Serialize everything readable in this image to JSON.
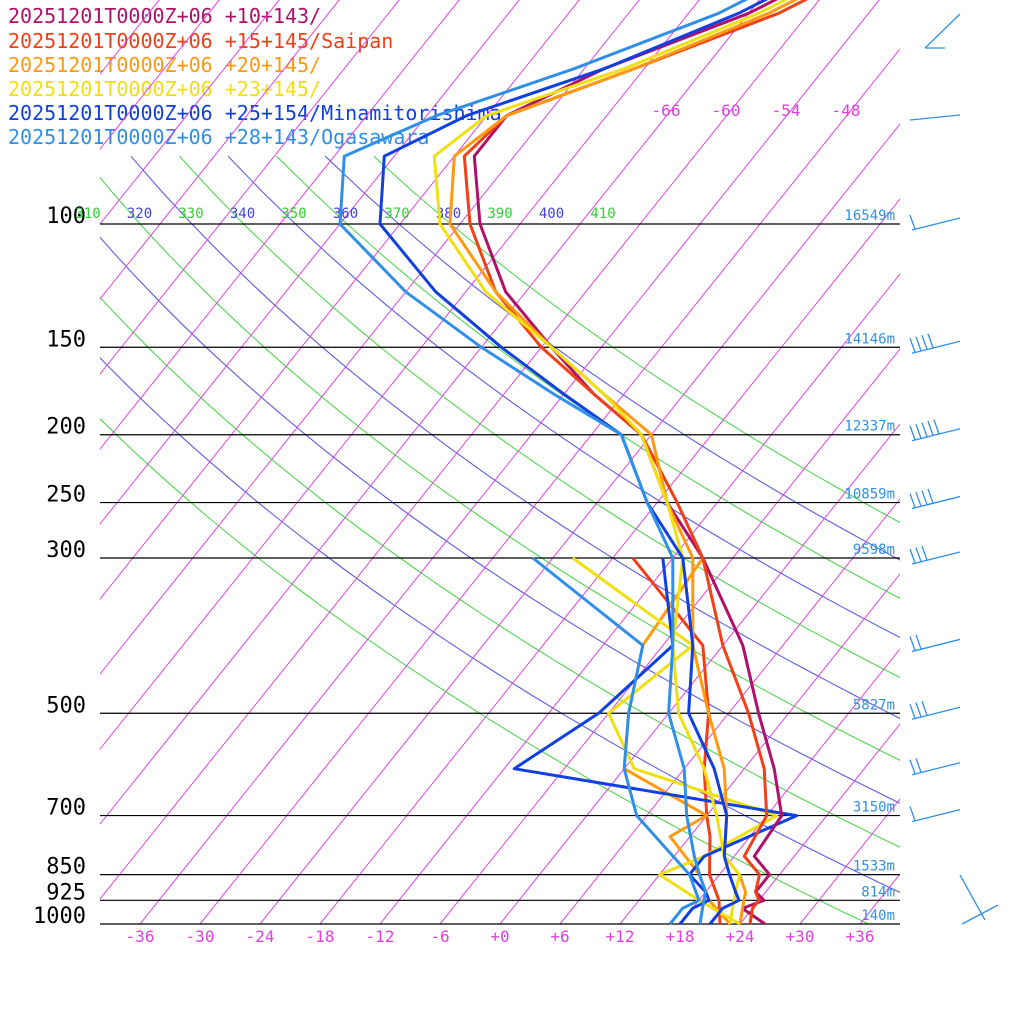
{
  "chart_data": {
    "type": "line",
    "title": "",
    "xlabel": "",
    "ylabel": "",
    "xlim": [
      -40,
      40
    ],
    "pressure_levels": [
      {
        "p": 100,
        "label": "100",
        "height": "16549m"
      },
      {
        "p": 150,
        "label": "150",
        "height": "14146m"
      },
      {
        "p": 200,
        "label": "200",
        "height": "12337m"
      },
      {
        "p": 250,
        "label": "250",
        "height": "10859m"
      },
      {
        "p": 300,
        "label": "300",
        "height": "9598m"
      },
      {
        "p": 500,
        "label": "500",
        "height": "5827m"
      },
      {
        "p": 700,
        "label": "700",
        "height": "3150m"
      },
      {
        "p": 850,
        "label": "850",
        "height": "1533m"
      },
      {
        "p": 925,
        "label": "925",
        "height": "814m"
      },
      {
        "p": 1000,
        "label": "1000",
        "height": "140m"
      }
    ],
    "x_ticks": [
      "-36",
      "-30",
      "-24",
      "-18",
      "-12",
      "-6",
      "+0",
      "+6",
      "+12",
      "+18",
      "+24",
      "+30",
      "+36"
    ],
    "x_tick_values": [
      -36,
      -30,
      -24,
      -18,
      -12,
      -6,
      0,
      6,
      12,
      18,
      24,
      30,
      36
    ],
    "top_temp_labels": [
      "-66",
      "-60",
      "-54",
      "-48"
    ],
    "theta_labels": [
      {
        "text": "310",
        "color": "#30d030"
      },
      {
        "text": "320",
        "color": "#4040e0"
      },
      {
        "text": "330",
        "color": "#30d030"
      },
      {
        "text": "340",
        "color": "#4040e0"
      },
      {
        "text": "350",
        "color": "#30d030"
      },
      {
        "text": "360",
        "color": "#4040e0"
      },
      {
        "text": "370",
        "color": "#30d030"
      },
      {
        "text": "380",
        "color": "#4040e0"
      },
      {
        "text": "390",
        "color": "#30d030"
      },
      {
        "text": "400",
        "color": "#4040e0"
      },
      {
        "text": "410",
        "color": "#30d030"
      }
    ],
    "series": [
      {
        "name": "20251201T0000Z+06 +10+143/",
        "color": "#b0106a",
        "temp": [
          [
            1000,
            26.5
          ],
          [
            950,
            23
          ],
          [
            925,
            24.5
          ],
          [
            900,
            23
          ],
          [
            850,
            23
          ],
          [
            800,
            20
          ],
          [
            700,
            19.5
          ],
          [
            600,
            15
          ],
          [
            500,
            9
          ],
          [
            400,
            2
          ],
          [
            300,
            -9
          ],
          [
            250,
            -17
          ],
          [
            200,
            -25
          ],
          [
            175,
            -33
          ],
          [
            150,
            -41
          ],
          [
            125,
            -50
          ],
          [
            100,
            -58
          ],
          [
            80,
            -64
          ],
          [
            70,
            -64
          ],
          [
            60,
            -58
          ],
          [
            50,
            -48
          ],
          [
            40,
            -40
          ]
        ],
        "dew": null
      },
      {
        "name": "20251201T0000Z+06 +15+145/Saipan",
        "color": "#f04018",
        "temp": [
          [
            1000,
            25
          ],
          [
            950,
            24
          ],
          [
            925,
            24
          ],
          [
            900,
            23
          ],
          [
            850,
            22
          ],
          [
            800,
            19
          ],
          [
            700,
            18
          ],
          [
            600,
            14
          ],
          [
            500,
            8
          ],
          [
            400,
            0
          ],
          [
            300,
            -9
          ],
          [
            250,
            -16
          ],
          [
            200,
            -25
          ],
          [
            175,
            -33
          ],
          [
            150,
            -42
          ],
          [
            125,
            -51
          ],
          [
            100,
            -59
          ],
          [
            80,
            -65
          ],
          [
            70,
            -64
          ],
          [
            60,
            -55
          ],
          [
            50,
            -45
          ],
          [
            40,
            -37
          ]
        ],
        "dew": [
          [
            1000,
            22
          ],
          [
            925,
            20
          ],
          [
            850,
            17
          ],
          [
            750,
            14
          ],
          [
            700,
            12
          ],
          [
            600,
            8
          ],
          [
            500,
            4
          ],
          [
            400,
            -2
          ],
          [
            300,
            -16
          ]
        ]
      },
      {
        "name": "20251201T0000Z+06 +20+145/",
        "color": "#ff9a10",
        "temp": [
          [
            1000,
            24
          ],
          [
            950,
            23
          ],
          [
            925,
            22.5
          ],
          [
            900,
            22
          ],
          [
            850,
            20
          ],
          [
            800,
            17
          ],
          [
            700,
            14
          ],
          [
            600,
            10
          ],
          [
            500,
            4
          ],
          [
            400,
            -3
          ],
          [
            300,
            -10
          ],
          [
            250,
            -17
          ],
          [
            200,
            -24
          ],
          [
            175,
            -32
          ],
          [
            150,
            -41
          ],
          [
            125,
            -51
          ],
          [
            100,
            -61
          ],
          [
            80,
            -66
          ],
          [
            70,
            -64
          ],
          [
            60,
            -55
          ],
          [
            50,
            -46
          ],
          [
            40,
            -38
          ]
        ],
        "dew": [
          [
            1000,
            23
          ],
          [
            925,
            19
          ],
          [
            850,
            16
          ],
          [
            750,
            10
          ],
          [
            700,
            12
          ],
          [
            600,
            0
          ],
          [
            500,
            -4
          ],
          [
            400,
            -8
          ],
          [
            300,
            -9
          ]
        ]
      },
      {
        "name": "20251201T0000Z+06 +23+145/",
        "color": "#f0e010",
        "temp": [
          [
            1000,
            23
          ],
          [
            950,
            22
          ],
          [
            925,
            21.5
          ],
          [
            900,
            21
          ],
          [
            850,
            20
          ],
          [
            800,
            17
          ],
          [
            700,
            13
          ],
          [
            600,
            8
          ],
          [
            500,
            1
          ],
          [
            400,
            -5
          ],
          [
            300,
            -11
          ],
          [
            250,
            -17
          ],
          [
            200,
            -25
          ],
          [
            175,
            -32
          ],
          [
            150,
            -41
          ],
          [
            125,
            -52
          ],
          [
            100,
            -62
          ],
          [
            80,
            -68
          ],
          [
            70,
            -66
          ],
          [
            60,
            -56
          ],
          [
            50,
            -47
          ],
          [
            40,
            -39
          ]
        ],
        "dew": [
          [
            1000,
            24
          ],
          [
            925,
            18
          ],
          [
            850,
            12
          ],
          [
            800,
            15
          ],
          [
            700,
            19
          ],
          [
            600,
            1
          ],
          [
            500,
            -6
          ],
          [
            400,
            -3
          ],
          [
            300,
            -22
          ]
        ]
      },
      {
        "name": "20251201T0000Z+06 +25+154/Minamitorishima",
        "color": "#1040e0",
        "temp": [
          [
            1000,
            21
          ],
          [
            950,
            21
          ],
          [
            925,
            22
          ],
          [
            900,
            21
          ],
          [
            850,
            19
          ],
          [
            800,
            17
          ],
          [
            700,
            14
          ],
          [
            600,
            9
          ],
          [
            500,
            2
          ],
          [
            400,
            -3
          ],
          [
            300,
            -11
          ],
          [
            250,
            -19
          ],
          [
            200,
            -27
          ],
          [
            175,
            -36
          ],
          [
            150,
            -46
          ],
          [
            125,
            -57
          ],
          [
            100,
            -68
          ],
          [
            80,
            -73
          ],
          [
            70,
            -68
          ],
          [
            60,
            -58
          ],
          [
            50,
            -49
          ],
          [
            40,
            -41
          ]
        ],
        "dew": [
          [
            1000,
            18
          ],
          [
            950,
            18
          ],
          [
            925,
            19
          ],
          [
            900,
            18
          ],
          [
            850,
            15
          ],
          [
            800,
            15
          ],
          [
            700,
            21
          ],
          [
            600,
            -11
          ],
          [
            500,
            -7
          ],
          [
            400,
            -5
          ],
          [
            300,
            -13
          ]
        ]
      },
      {
        "name": "20251201T0000Z+06 +28+143/Ogasawara",
        "color": "#3090e8",
        "temp": [
          [
            1000,
            20
          ],
          [
            950,
            19
          ],
          [
            925,
            18.5
          ],
          [
            900,
            18
          ],
          [
            850,
            16
          ],
          [
            800,
            14
          ],
          [
            700,
            10
          ],
          [
            600,
            6
          ],
          [
            500,
            0
          ],
          [
            400,
            -5
          ],
          [
            300,
            -12
          ],
          [
            250,
            -19
          ],
          [
            200,
            -27
          ],
          [
            175,
            -37
          ],
          [
            150,
            -48
          ],
          [
            125,
            -60
          ],
          [
            100,
            -72
          ],
          [
            80,
            -77
          ],
          [
            70,
            -71
          ],
          [
            60,
            -61
          ],
          [
            50,
            -51
          ],
          [
            40,
            -43
          ]
        ],
        "dew": [
          [
            1000,
            17
          ],
          [
            950,
            17
          ],
          [
            925,
            18
          ],
          [
            850,
            15
          ],
          [
            700,
            5
          ],
          [
            600,
            0
          ],
          [
            500,
            -4
          ],
          [
            400,
            -8
          ],
          [
            300,
            -26
          ]
        ]
      }
    ],
    "wind_barbs": true,
    "grid": true
  }
}
